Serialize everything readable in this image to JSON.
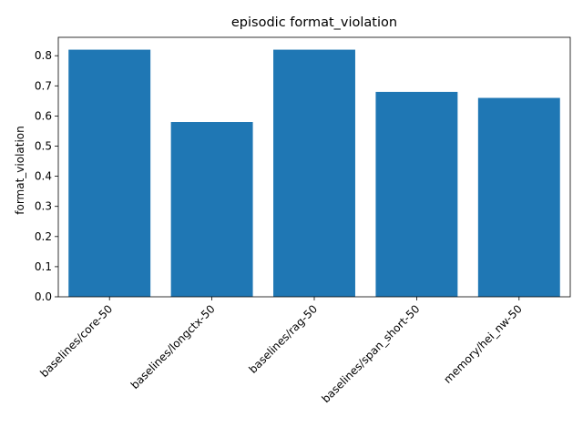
{
  "chart_data": {
    "type": "bar",
    "title": "episodic format_violation",
    "xlabel": "",
    "ylabel": "format_violation",
    "categories": [
      "baselines/core-50",
      "baselines/longctx-50",
      "baselines/rag-50",
      "baselines/span_short-50",
      "memory/hei_nw-50"
    ],
    "values": [
      0.82,
      0.58,
      0.82,
      0.68,
      0.66
    ],
    "ylim": [
      0,
      0.861
    ],
    "yticks": [
      "0.0",
      "0.1",
      "0.2",
      "0.3",
      "0.4",
      "0.5",
      "0.6",
      "0.7",
      "0.8"
    ],
    "grid": false,
    "bar_color": "#1f77b4",
    "axis_color": "#000000"
  }
}
